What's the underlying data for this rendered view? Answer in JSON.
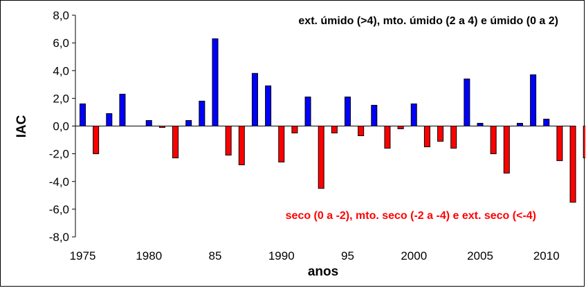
{
  "chart_data": {
    "type": "bar",
    "ylabel": "IAC",
    "xlabel": "anos",
    "ylim": [
      -8.0,
      8.0
    ],
    "y_ticks": [
      "8,0",
      "6,0",
      "4,0",
      "2,0",
      "0,0",
      "-2,0",
      "-4,0",
      "-6,0",
      "-8,0"
    ],
    "y_tick_values": [
      8,
      6,
      4,
      2,
      0,
      -2,
      -4,
      -6,
      -8
    ],
    "x_tick_labels": [
      {
        "year": 1975,
        "label": "1975"
      },
      {
        "year": 1980,
        "label": "1980"
      },
      {
        "year": 1985,
        "label": "85"
      },
      {
        "year": 1990,
        "label": "1990"
      },
      {
        "year": 1995,
        "label": "95"
      },
      {
        "year": 2000,
        "label": "2000"
      },
      {
        "year": 2005,
        "label": "2005"
      },
      {
        "year": 2010,
        "label": "2010"
      }
    ],
    "annotations": {
      "wet": "ext. úmido (>4), mto. úmido (2 a 4) e úmido (0 a 2)",
      "dry": "seco (0 a -2), mto. seco (-2 a -4) e ext. seco (<-4)"
    },
    "colors": {
      "positive": "#0000ff",
      "negative": "#ff0000",
      "outline": "#000000"
    },
    "grid": false,
    "series": [
      {
        "values": [
          {
            "year": 1975,
            "value": 1.6
          },
          {
            "year": 1976,
            "value": -2.0
          },
          {
            "year": 1977,
            "value": 0.9
          },
          {
            "year": 1978,
            "value": 2.3
          },
          {
            "year": 1979,
            "value": 0.0
          },
          {
            "year": 1980,
            "value": 0.4
          },
          {
            "year": 1981,
            "value": -0.1
          },
          {
            "year": 1982,
            "value": -2.3
          },
          {
            "year": 1983,
            "value": 0.4
          },
          {
            "year": 1984,
            "value": 1.8
          },
          {
            "year": 1985,
            "value": 6.3
          },
          {
            "year": 1986,
            "value": -2.1
          },
          {
            "year": 1987,
            "value": -2.8
          },
          {
            "year": 1988,
            "value": 3.8
          },
          {
            "year": 1989,
            "value": 2.9
          },
          {
            "year": 1990,
            "value": -2.6
          },
          {
            "year": 1991,
            "value": -0.5
          },
          {
            "year": 1992,
            "value": 2.1
          },
          {
            "year": 1993,
            "value": -4.5
          },
          {
            "year": 1994,
            "value": -0.5
          },
          {
            "year": 1995,
            "value": 2.1
          },
          {
            "year": 1996,
            "value": -0.7
          },
          {
            "year": 1997,
            "value": 1.5
          },
          {
            "year": 1998,
            "value": -1.6
          },
          {
            "year": 1999,
            "value": -0.2
          },
          {
            "year": 2000,
            "value": 1.6
          },
          {
            "year": 2001,
            "value": -1.5
          },
          {
            "year": 2002,
            "value": -1.1
          },
          {
            "year": 2003,
            "value": -1.6
          },
          {
            "year": 2004,
            "value": 3.4
          },
          {
            "year": 2005,
            "value": 0.2
          },
          {
            "year": 2006,
            "value": -2.0
          },
          {
            "year": 2007,
            "value": -3.4
          },
          {
            "year": 2008,
            "value": 0.2
          },
          {
            "year": 2009,
            "value": 3.7
          },
          {
            "year": 2010,
            "value": 0.5
          },
          {
            "year": 2011,
            "value": -2.5
          },
          {
            "year": 2012,
            "value": -5.5
          },
          {
            "year": 2013,
            "value": -2.3
          }
        ]
      }
    ]
  }
}
